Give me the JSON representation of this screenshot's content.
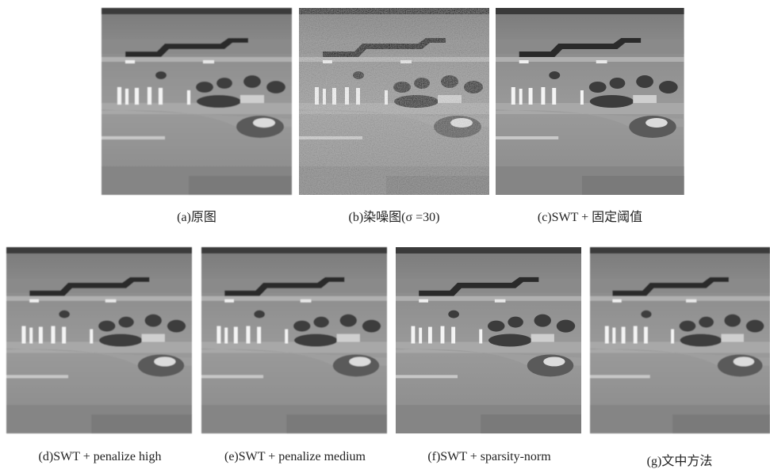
{
  "figure": {
    "captions": [
      "(a)原图",
      "(b)染噪图(σ =30)",
      "(c)SWT + 固定阈值",
      "(d)SWT + penalize high",
      "(e)SWT + penalize medium",
      "(f)SWT + sparsity-norm",
      "(g)文中方法"
    ]
  }
}
